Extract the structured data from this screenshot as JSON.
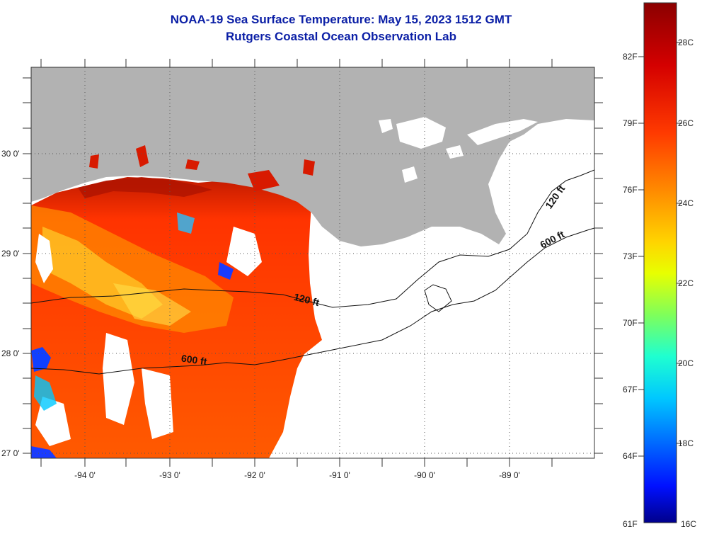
{
  "header": {
    "title": "NOAA-19 Sea Surface Temperature:  May 15, 2023 1512 GMT",
    "subtitle": "Rutgers Coastal Ocean Observation Lab"
  },
  "axes": {
    "lat_labels": [
      "30 0'",
      "29 0'",
      "28 0'",
      "27 0'"
    ],
    "lat_values": [
      30,
      29,
      28,
      27
    ],
    "lon_labels": [
      "-94 0'",
      "-93 0'",
      "-92 0'",
      "-91 0'",
      "-90 0'",
      "-89 0'"
    ],
    "lon_values": [
      -94,
      -93,
      -92,
      -91,
      -90,
      -89
    ],
    "lat_range": [
      26.95,
      30.86
    ],
    "lon_range": [
      -94.62,
      -88.0
    ]
  },
  "contours": {
    "c120": "120 ft",
    "c600a": "600 ft",
    "c600b": "600 ft",
    "c120b": "120 ft"
  },
  "colorbar": {
    "fahrenheit": [
      "82F",
      "79F",
      "76F",
      "73F",
      "70F",
      "67F",
      "64F",
      "61F"
    ],
    "celsius": [
      "28C",
      "26C",
      "24C",
      "22C",
      "20C",
      "18C",
      "16C"
    ],
    "colors": [
      "#8b0000",
      "#d40000",
      "#ff3a00",
      "#ff8a00",
      "#ffd400",
      "#e8ff00",
      "#7fff5a",
      "#1fffd0",
      "#00c8ff",
      "#0066ff",
      "#0010ff",
      "#00008b"
    ]
  },
  "colors": {
    "land": "#b2b2b2",
    "ocean_no_data": "#ffffff",
    "title": "#0b1fa6"
  }
}
